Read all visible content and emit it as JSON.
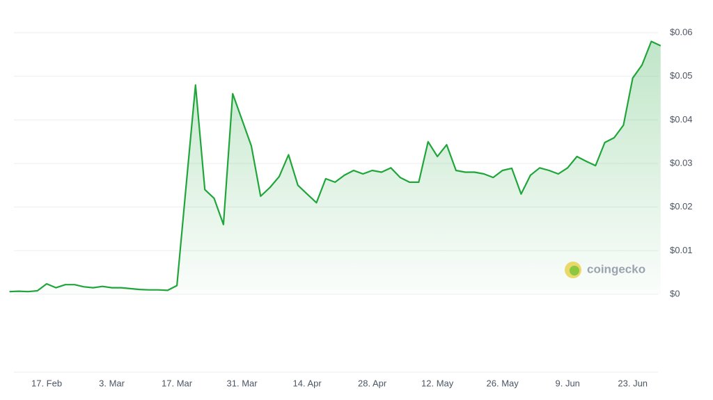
{
  "chart_data": {
    "type": "line",
    "watermark": "coingecko",
    "x": [
      "9. Feb",
      "11. Feb",
      "13. Feb",
      "15. Feb",
      "17. Feb",
      "19. Feb",
      "21. Feb",
      "23. Feb",
      "25. Feb",
      "27. Feb",
      "1. Mar",
      "3. Mar",
      "5. Mar",
      "7. Mar",
      "9. Mar",
      "11. Mar",
      "13. Mar",
      "15. Mar",
      "17. Mar",
      "19. Mar",
      "21. Mar",
      "23. Mar",
      "25. Mar",
      "27. Mar",
      "29. Mar",
      "31. Mar",
      "2. Apr",
      "4. Apr",
      "6. Apr",
      "8. Apr",
      "10. Apr",
      "12. Apr",
      "14. Apr",
      "16. Apr",
      "18. Apr",
      "20. Apr",
      "22. Apr",
      "24. Apr",
      "26. Apr",
      "28. Apr",
      "30. Apr",
      "2. May",
      "4. May",
      "6. May",
      "8. May",
      "10. May",
      "12. May",
      "14. May",
      "16. May",
      "18. May",
      "20. May",
      "22. May",
      "24. May",
      "26. May",
      "28. May",
      "30. May",
      "1. Jun",
      "3. Jun",
      "5. Jun",
      "7. Jun",
      "9. Jun",
      "11. Jun",
      "13. Jun",
      "15. Jun",
      "17. Jun",
      "19. Jun",
      "21. Jun",
      "23. Jun",
      "25. Jun",
      "27. Jun",
      "29. Jun"
    ],
    "series": [
      {
        "name": "Price",
        "color": "#1fa53a",
        "values": [
          0.0006,
          0.0007,
          0.0006,
          0.0008,
          0.0024,
          0.0015,
          0.0022,
          0.0022,
          0.0017,
          0.0015,
          0.0018,
          0.0015,
          0.0015,
          0.0013,
          0.0011,
          0.001,
          0.001,
          0.0009,
          0.002,
          0.025,
          0.048,
          0.024,
          0.022,
          0.016,
          0.046,
          0.04,
          0.034,
          0.0225,
          0.0245,
          0.027,
          0.032,
          0.025,
          0.023,
          0.021,
          0.0265,
          0.0257,
          0.0273,
          0.0284,
          0.0276,
          0.0284,
          0.028,
          0.029,
          0.0268,
          0.0257,
          0.0257,
          0.035,
          0.0316,
          0.0343,
          0.0284,
          0.028,
          0.028,
          0.0276,
          0.0268,
          0.0284,
          0.0289,
          0.023,
          0.0273,
          0.029,
          0.0284,
          0.0276,
          0.029,
          0.0316,
          0.0305,
          0.0295,
          0.0348,
          0.0359,
          0.0388,
          0.0496,
          0.0526,
          0.058,
          0.057
        ]
      }
    ],
    "ylim": [
      0,
      0.06
    ],
    "yticks": [
      {
        "value": 0,
        "label": "$0"
      },
      {
        "value": 0.01,
        "label": "$0.01"
      },
      {
        "value": 0.02,
        "label": "$0.02"
      },
      {
        "value": 0.03,
        "label": "$0.03"
      },
      {
        "value": 0.04,
        "label": "$0.04"
      },
      {
        "value": 0.05,
        "label": "$0.05"
      },
      {
        "value": 0.06,
        "label": "$0.06"
      }
    ],
    "xticks": [
      "17. Feb",
      "3. Mar",
      "17. Mar",
      "31. Mar",
      "14. Apr",
      "28. Apr",
      "12. May",
      "26. May",
      "9. Jun",
      "23. Jun"
    ],
    "grid": true
  }
}
